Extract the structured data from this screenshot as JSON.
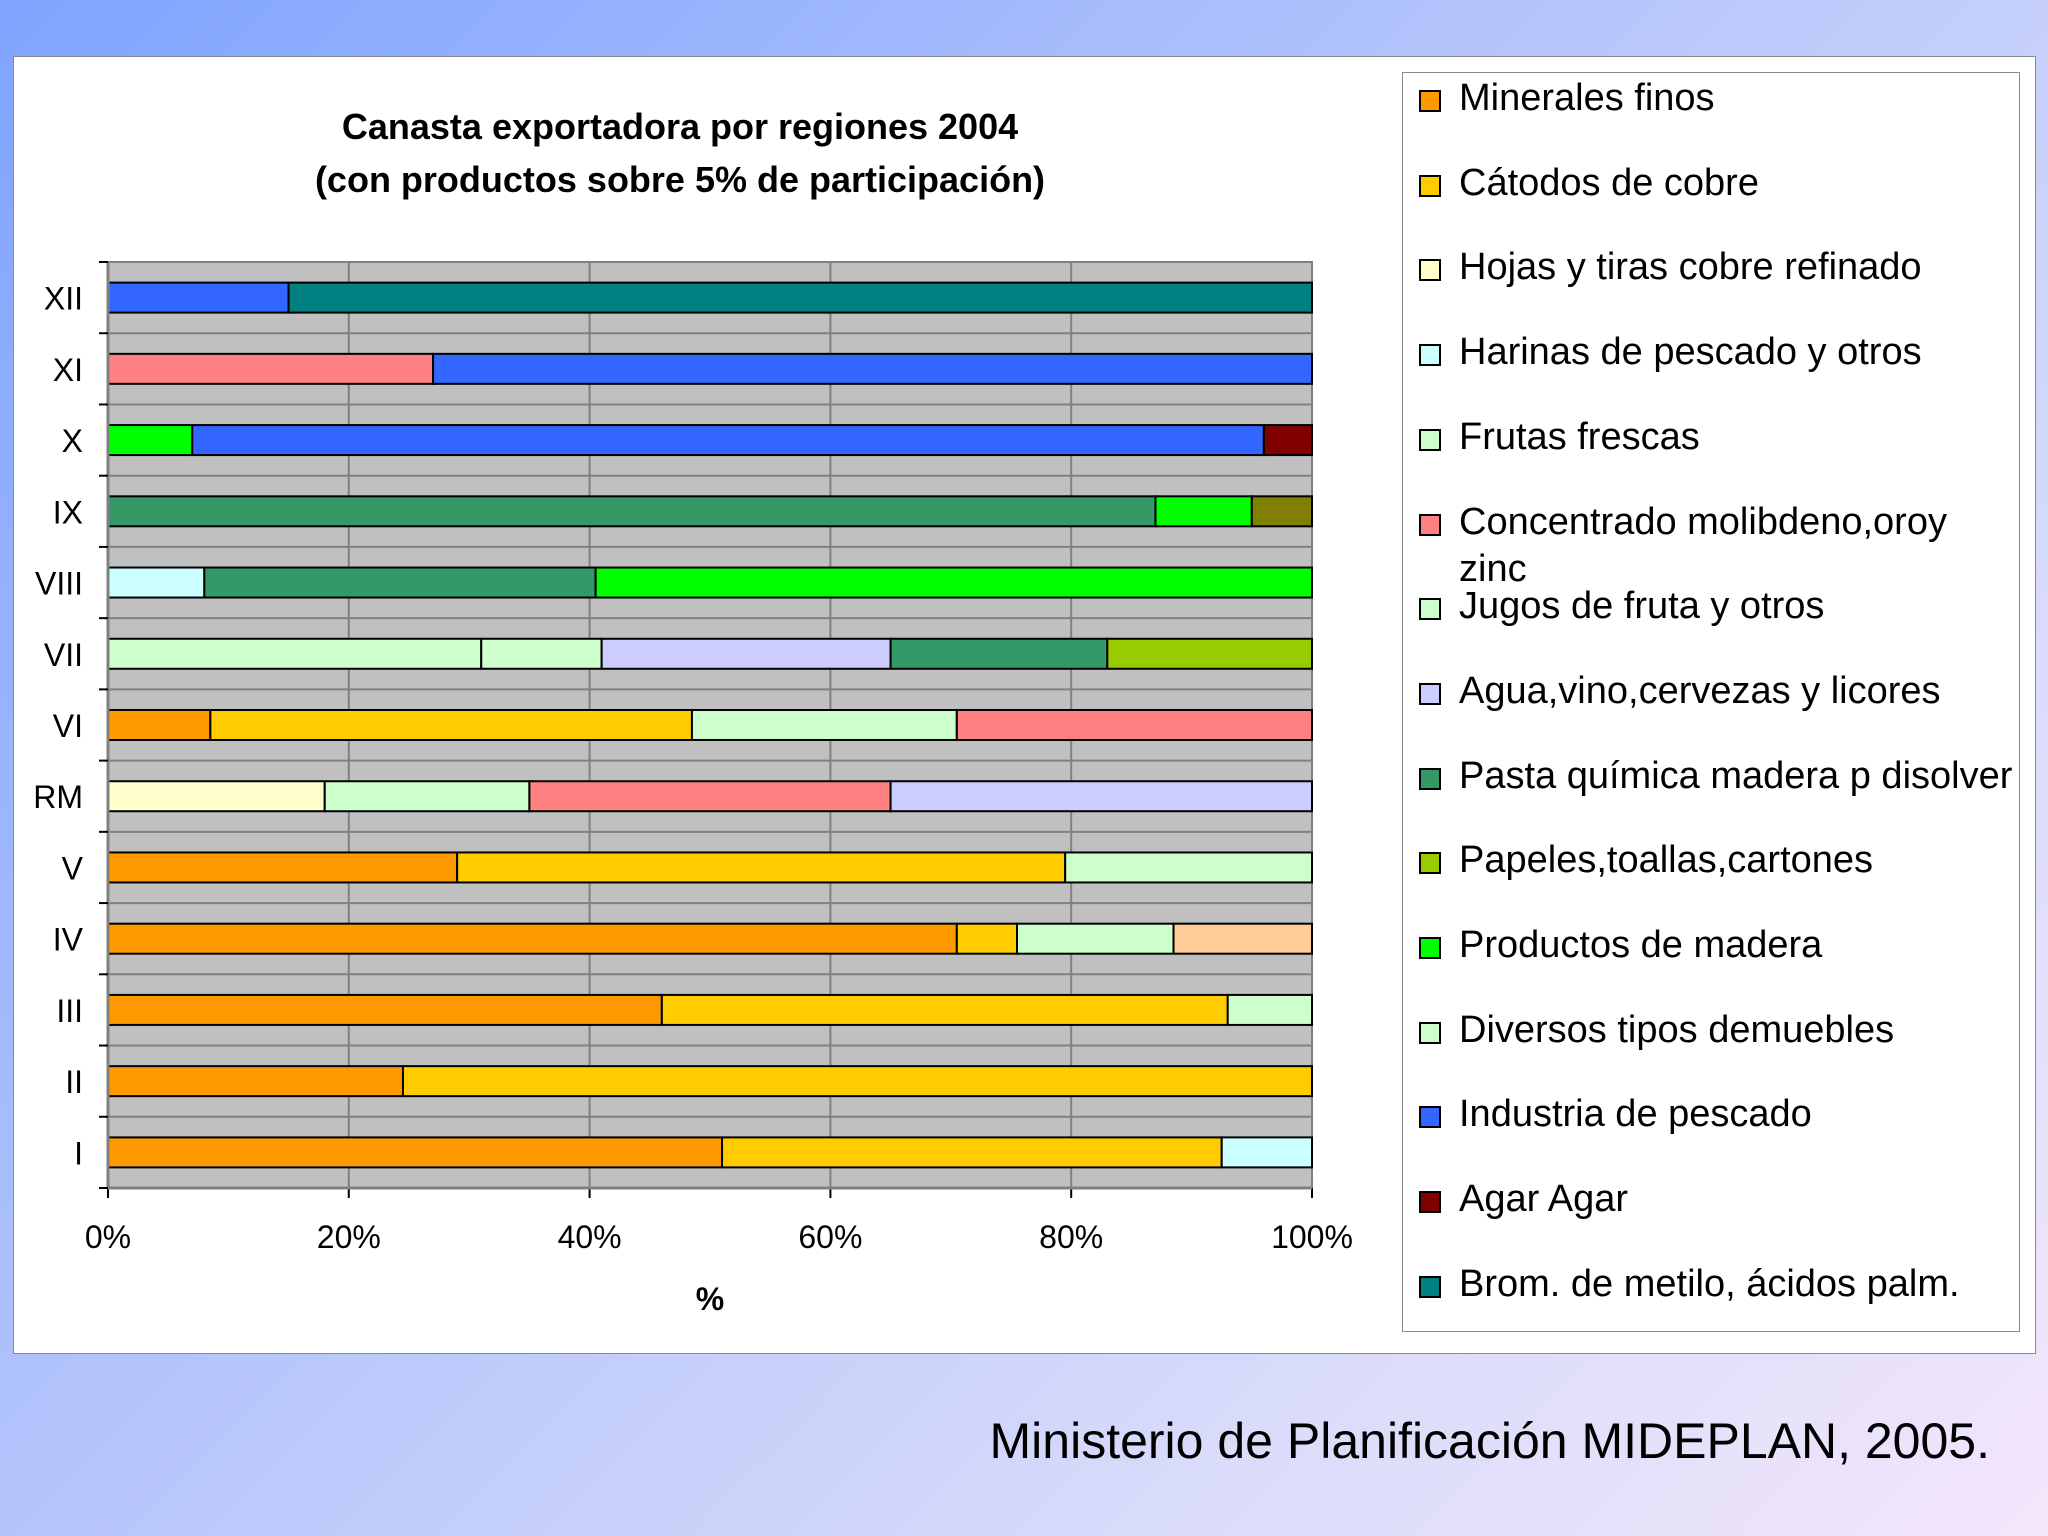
{
  "chart_data": {
    "type": "bar",
    "orientation": "horizontal",
    "stacked": "percent",
    "title": "Canasta exportadora por regiones 2004",
    "subtitle": "(con productos sobre 5% de participación)",
    "xlabel": "%",
    "ylabel": "",
    "xlim": [
      0,
      100
    ],
    "x_ticks": [
      "0%",
      "20%",
      "40%",
      "60%",
      "80%",
      "100%"
    ],
    "grid": true,
    "legend_position": "right",
    "categories": [
      "XII",
      "XI",
      "X",
      "IX",
      "VIII",
      "VII",
      "VI",
      "RM",
      "V",
      "IV",
      "III",
      "II",
      "I"
    ],
    "rows": [
      {
        "region": "XII",
        "segments": [
          {
            "series": "Industria de pescado",
            "value": 15
          },
          {
            "series": "Brom. de metilo, ácidos palm.",
            "value": 85
          }
        ]
      },
      {
        "region": "XI",
        "segments": [
          {
            "series": "Concentrado molibdeno,oroy zinc",
            "value": 27
          },
          {
            "series": "Industria de pescado",
            "value": 73
          }
        ]
      },
      {
        "region": "X",
        "segments": [
          {
            "series": "Productos de madera",
            "value": 7
          },
          {
            "series": "Industria de pescado",
            "value": 89
          },
          {
            "series": "Agar Agar",
            "value": 4
          }
        ]
      },
      {
        "region": "IX",
        "segments": [
          {
            "series": "Pasta química madera p disolver",
            "value": 87
          },
          {
            "series": "Productos de madera",
            "value": 8
          },
          {
            "series": "",
            "value": 5
          }
        ]
      },
      {
        "region": "VIII",
        "segments": [
          {
            "series": "Harinas de pescado y otros",
            "value": 8
          },
          {
            "series": "Pasta química madera p disolver",
            "value": 32.5
          },
          {
            "series": "Productos de madera",
            "value": 59.5
          }
        ]
      },
      {
        "region": "VII",
        "segments": [
          {
            "series": "Frutas frescas",
            "value": 31
          },
          {
            "series": "Jugos de fruta y otros",
            "value": 10
          },
          {
            "series": "Agua,vino,cervezas y licores",
            "value": 24
          },
          {
            "series": "Pasta química madera p disolver",
            "value": 18
          },
          {
            "series": "Papeles,toallas,cartones",
            "value": 17
          }
        ]
      },
      {
        "region": "VI",
        "segments": [
          {
            "series": "Minerales finos",
            "value": 8.5
          },
          {
            "series": "Cátodos de cobre",
            "value": 40
          },
          {
            "series": "Frutas frescas",
            "value": 22
          },
          {
            "series": "Concentrado molibdeno,oroy zinc",
            "value": 29.5
          }
        ]
      },
      {
        "region": "RM",
        "segments": [
          {
            "series": "Hojas y tiras cobre refinado",
            "value": 18
          },
          {
            "series": "Frutas frescas",
            "value": 17
          },
          {
            "series": "Concentrado molibdeno,oroy zinc",
            "value": 30
          },
          {
            "series": "Agua,vino,cervezas y licores",
            "value": 35
          }
        ]
      },
      {
        "region": "V",
        "segments": [
          {
            "series": "Minerales finos",
            "value": 29
          },
          {
            "series": "Cátodos de cobre",
            "value": 50.5
          },
          {
            "series": "Frutas frescas",
            "value": 20.5
          }
        ]
      },
      {
        "region": "IV",
        "segments": [
          {
            "series": "Minerales finos",
            "value": 70.5
          },
          {
            "series": "Cátodos de cobre",
            "value": 5
          },
          {
            "series": "Frutas frescas",
            "value": 13
          },
          {
            "series": "",
            "value": 11.5
          }
        ]
      },
      {
        "region": "III",
        "segments": [
          {
            "series": "Minerales finos",
            "value": 46
          },
          {
            "series": "Cátodos de cobre",
            "value": 47
          },
          {
            "series": "Frutas frescas",
            "value": 7
          }
        ]
      },
      {
        "region": "II",
        "segments": [
          {
            "series": "Minerales finos",
            "value": 24.5
          },
          {
            "series": "Cátodos de cobre",
            "value": 75.5
          }
        ]
      },
      {
        "region": "I",
        "segments": [
          {
            "series": "Minerales finos",
            "value": 51
          },
          {
            "series": "Cátodos de cobre",
            "value": 41.5
          },
          {
            "series": "Harinas de pescado y otros",
            "value": 7.5
          }
        ]
      }
    ],
    "legend": [
      {
        "name": "Minerales finos",
        "color": "#ff9900"
      },
      {
        "name": "Cátodos de cobre",
        "color": "#ffcc00"
      },
      {
        "name": "Hojas y tiras cobre refinado",
        "color": "#ffffcc"
      },
      {
        "name": "Harinas de pescado y otros",
        "color": "#ccffff"
      },
      {
        "name": "Frutas frescas",
        "color": "#ccffcc"
      },
      {
        "name": "Concentrado molibdeno,oroy zinc",
        "color": "#ff8080"
      },
      {
        "name": "Jugos de fruta y otros",
        "color": "#ccffcc"
      },
      {
        "name": "Agua,vino,cervezas y licores",
        "color": "#ccccff"
      },
      {
        "name": "Pasta química madera p disolver",
        "color": "#339966"
      },
      {
        "name": "Papeles,toallas,cartones",
        "color": "#99cc00"
      },
      {
        "name": "Productos de madera",
        "color": "#00ff00"
      },
      {
        "name": "Diversos tipos demuebles",
        "color": "#ccffcc"
      },
      {
        "name": "Industria de pescado",
        "color": "#3366ff"
      },
      {
        "name": "Agar Agar",
        "color": "#800000"
      },
      {
        "name": "Brom. de metilo, ácidos palm.",
        "color": "#008080"
      }
    ],
    "unlisted_colors": {
      "IX": "#808000",
      "IV": "#ffcc99"
    }
  },
  "footer": {
    "source": "Ministerio de Planificación MIDEPLAN, 2005."
  }
}
